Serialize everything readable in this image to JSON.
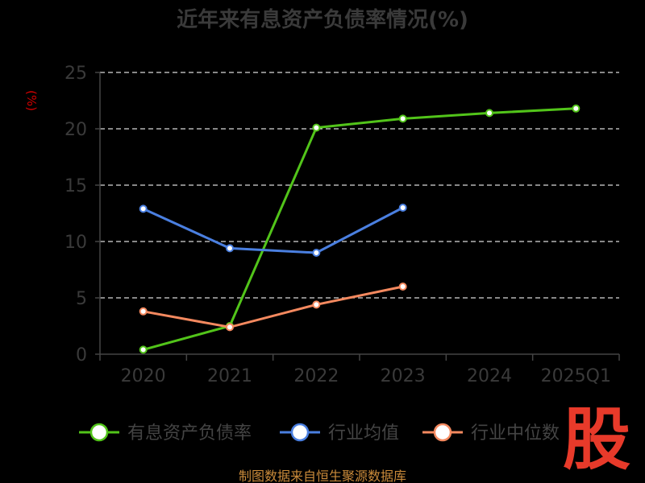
{
  "chart_data": {
    "type": "line",
    "title": "近年来有息资产负债率情况(%)",
    "ylabel": "(%)",
    "categories": [
      "2020",
      "2021",
      "2022",
      "2023",
      "2024",
      "2025Q1"
    ],
    "ylim": [
      0,
      25
    ],
    "yticks": [
      0,
      5,
      10,
      15,
      20,
      25
    ],
    "grid": true,
    "legend_position": "bottom",
    "series": [
      {
        "name": "有息资产负债率",
        "color": "#52c41a",
        "values": [
          0.4,
          2.5,
          20.1,
          20.9,
          21.4,
          21.8
        ]
      },
      {
        "name": "行业均值",
        "color": "#4a7fe0",
        "values": [
          12.9,
          9.4,
          9.0,
          13.0,
          null,
          null
        ]
      },
      {
        "name": "行业中位数",
        "color": "#f4895f",
        "values": [
          3.8,
          2.4,
          4.4,
          6.0,
          null,
          null
        ]
      }
    ]
  },
  "source": "制图数据来自恒生聚源数据库",
  "stamp": "股"
}
